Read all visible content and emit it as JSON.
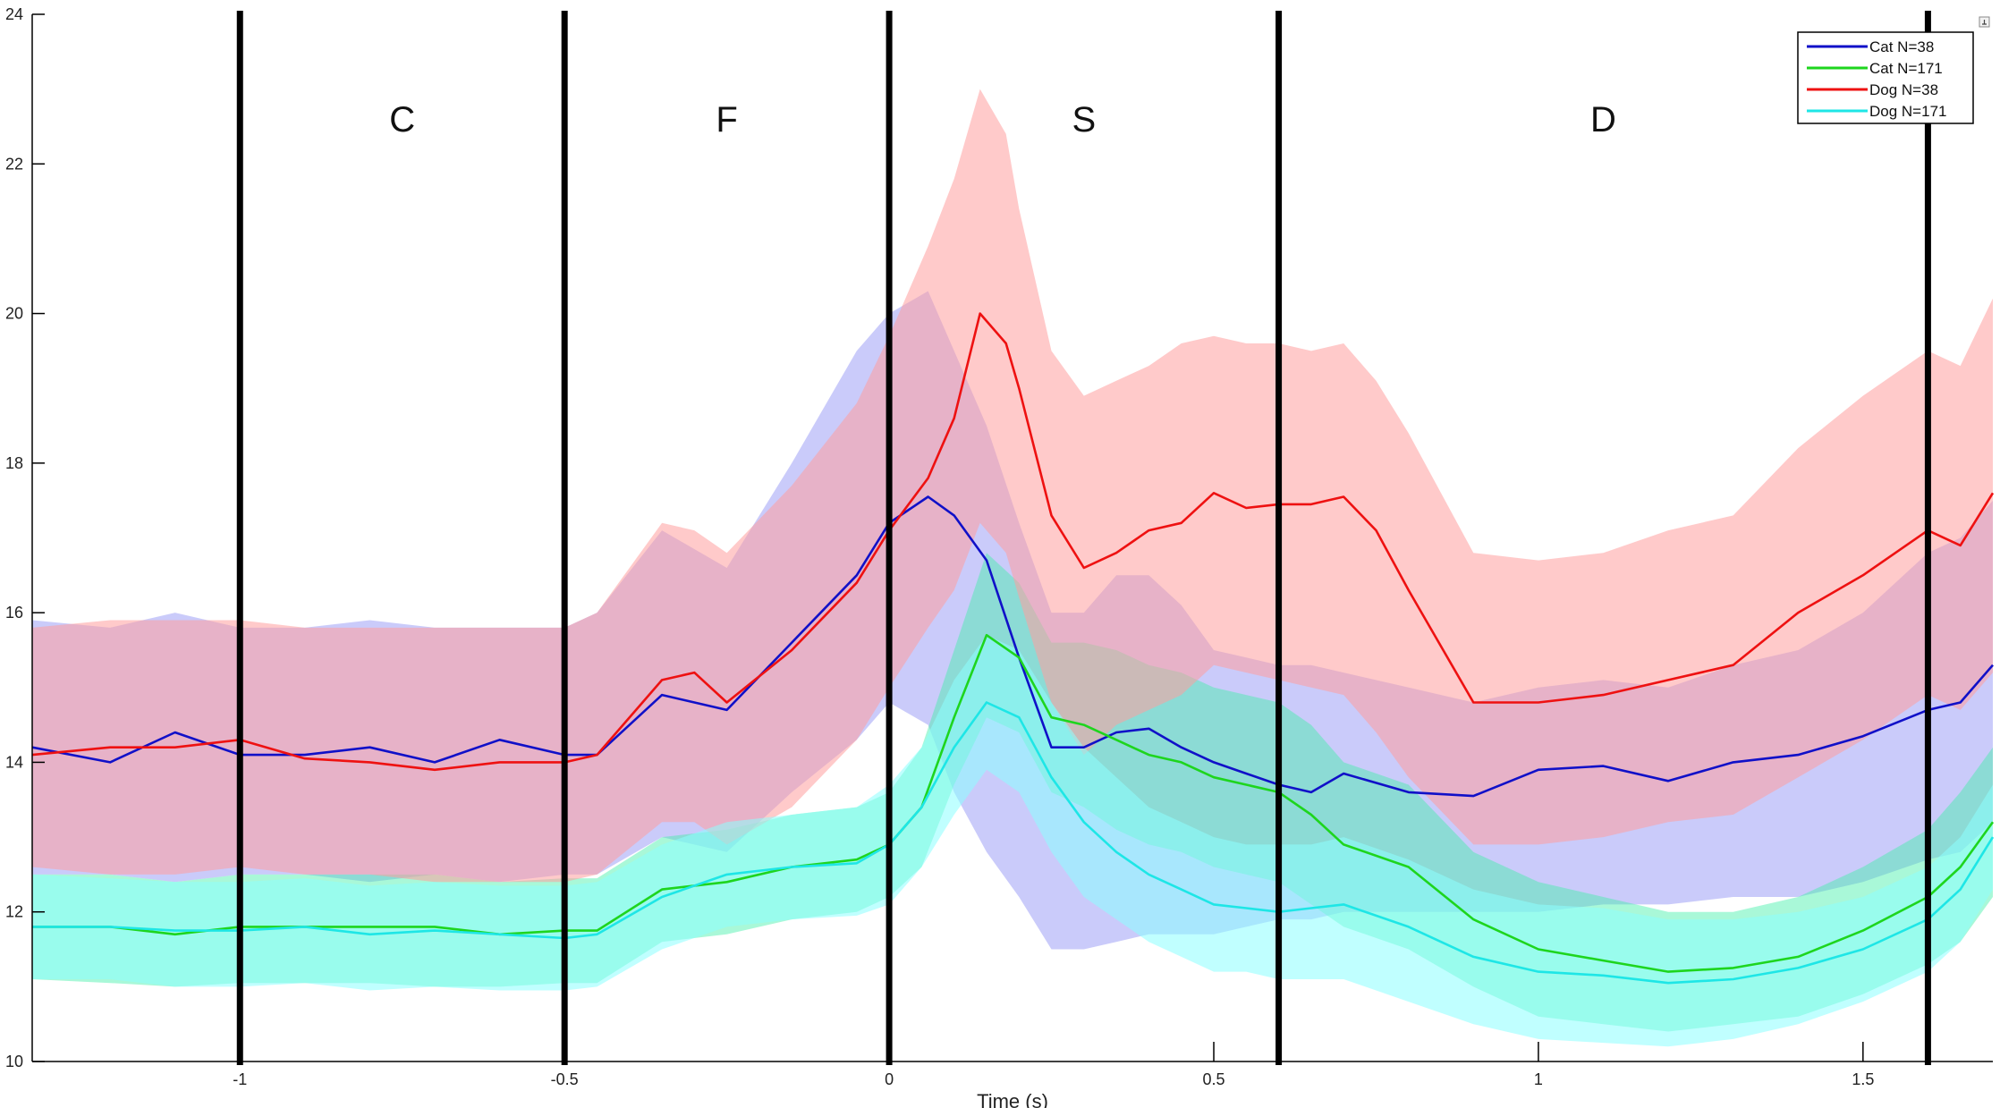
{
  "chart_data": {
    "type": "line",
    "title": "",
    "xlabel": "Time (s)",
    "ylabel": "",
    "xlim": [
      -1.32,
      1.7
    ],
    "ylim": [
      10,
      24
    ],
    "xticks": [
      -1,
      -0.5,
      0,
      0.5,
      1,
      1.5
    ],
    "xtick_labels": [
      "-1",
      "-0.5",
      "0",
      "0.5",
      "1",
      "1.5"
    ],
    "yticks": [
      10,
      12,
      14,
      16,
      18,
      20,
      22,
      24
    ],
    "ytick_labels": [
      "10",
      "12",
      "14",
      "16",
      "18",
      "20",
      "22",
      "24"
    ],
    "grid": false,
    "legend_position": "top-right",
    "vertical_lines": [
      -1,
      -0.5,
      0,
      0.6,
      1.6
    ],
    "phase_labels": [
      {
        "text": "C",
        "x": -0.75,
        "y": 22.6
      },
      {
        "text": "F",
        "x": -0.25,
        "y": 22.6
      },
      {
        "text": "S",
        "x": 0.3,
        "y": 22.6
      },
      {
        "text": "D",
        "x": 1.1,
        "y": 22.6
      }
    ],
    "series": [
      {
        "name": "Cat N=38",
        "color": "#1010c8",
        "band_color": "#8a8cf5",
        "band_opacity": 0.45,
        "x": [
          -1.32,
          -1.2,
          -1.1,
          -1.0,
          -0.9,
          -0.8,
          -0.7,
          -0.6,
          -0.5,
          -0.45,
          -0.35,
          -0.25,
          -0.15,
          -0.05,
          0.0,
          0.06,
          0.1,
          0.15,
          0.2,
          0.25,
          0.3,
          0.35,
          0.4,
          0.45,
          0.5,
          0.55,
          0.6,
          0.65,
          0.7,
          0.8,
          0.9,
          1.0,
          1.1,
          1.2,
          1.3,
          1.4,
          1.5,
          1.6,
          1.65,
          1.7
        ],
        "values": [
          14.2,
          14.0,
          14.4,
          14.1,
          14.1,
          14.2,
          14.0,
          14.3,
          14.1,
          14.1,
          14.9,
          14.7,
          15.6,
          16.5,
          17.2,
          17.55,
          17.3,
          16.7,
          15.4,
          14.2,
          14.2,
          14.4,
          14.45,
          14.2,
          14.0,
          13.85,
          13.7,
          13.6,
          13.85,
          13.6,
          13.55,
          13.9,
          13.95,
          13.75,
          14.0,
          14.1,
          14.35,
          14.7,
          14.8,
          15.3
        ],
        "lower": [
          12.5,
          12.5,
          12.4,
          12.5,
          12.5,
          12.4,
          12.5,
          12.4,
          12.5,
          12.5,
          13.0,
          12.8,
          13.6,
          14.3,
          14.8,
          14.5,
          13.6,
          12.8,
          12.2,
          11.5,
          11.5,
          11.6,
          11.7,
          11.7,
          11.7,
          11.8,
          11.9,
          11.9,
          12.0,
          12.0,
          12.0,
          12.0,
          12.1,
          12.1,
          12.2,
          12.2,
          12.4,
          12.7,
          12.8,
          13.2
        ],
        "upper": [
          15.9,
          15.8,
          16.0,
          15.8,
          15.8,
          15.9,
          15.8,
          15.8,
          15.8,
          16.0,
          17.1,
          16.6,
          18.0,
          19.5,
          20.0,
          20.3,
          19.5,
          18.5,
          17.2,
          16.0,
          16.0,
          16.5,
          16.5,
          16.1,
          15.5,
          15.4,
          15.3,
          15.3,
          15.2,
          15.0,
          14.8,
          15.0,
          15.1,
          15.0,
          15.3,
          15.5,
          16.0,
          16.8,
          17.0,
          17.5
        ]
      },
      {
        "name": "Cat N=171",
        "color": "#1ed51e",
        "band_color": "#40f0a8",
        "band_opacity": 0.45,
        "x": [
          -1.32,
          -1.2,
          -1.1,
          -1.0,
          -0.9,
          -0.8,
          -0.7,
          -0.6,
          -0.5,
          -0.45,
          -0.35,
          -0.25,
          -0.15,
          -0.05,
          0.0,
          0.05,
          0.1,
          0.15,
          0.2,
          0.25,
          0.3,
          0.35,
          0.4,
          0.45,
          0.5,
          0.55,
          0.6,
          0.65,
          0.7,
          0.8,
          0.9,
          1.0,
          1.1,
          1.2,
          1.3,
          1.4,
          1.5,
          1.6,
          1.65,
          1.7
        ],
        "values": [
          11.8,
          11.8,
          11.7,
          11.8,
          11.8,
          11.8,
          11.8,
          11.7,
          11.75,
          11.75,
          12.3,
          12.4,
          12.6,
          12.7,
          12.9,
          13.4,
          14.6,
          15.7,
          15.4,
          14.6,
          14.5,
          14.3,
          14.1,
          14.0,
          13.8,
          13.7,
          13.6,
          13.3,
          12.9,
          12.6,
          11.9,
          11.5,
          11.35,
          11.2,
          11.25,
          11.4,
          11.75,
          12.2,
          12.6,
          13.2
        ],
        "lower": [
          11.1,
          11.05,
          11.0,
          11.05,
          11.05,
          11.05,
          11.0,
          11.0,
          11.05,
          11.05,
          11.6,
          11.7,
          11.9,
          12.0,
          12.2,
          12.6,
          13.7,
          14.6,
          14.4,
          13.6,
          13.4,
          13.1,
          12.9,
          12.8,
          12.6,
          12.5,
          12.4,
          12.1,
          11.8,
          11.5,
          11.0,
          10.6,
          10.5,
          10.4,
          10.5,
          10.6,
          10.9,
          11.3,
          11.6,
          12.2
        ],
        "upper": [
          12.5,
          12.5,
          12.4,
          12.5,
          12.5,
          12.5,
          12.5,
          12.4,
          12.45,
          12.45,
          13.0,
          13.1,
          13.3,
          13.4,
          13.6,
          14.2,
          15.5,
          16.8,
          16.4,
          15.6,
          15.6,
          15.5,
          15.3,
          15.2,
          15.0,
          14.9,
          14.8,
          14.5,
          14.0,
          13.7,
          12.8,
          12.4,
          12.2,
          12.0,
          12.0,
          12.2,
          12.6,
          13.1,
          13.6,
          14.2
        ]
      },
      {
        "name": "Dog N=38",
        "color": "#ee1111",
        "band_color": "#ff9f9f",
        "band_opacity": 0.55,
        "x": [
          -1.32,
          -1.2,
          -1.1,
          -1.0,
          -0.9,
          -0.8,
          -0.7,
          -0.6,
          -0.5,
          -0.45,
          -0.35,
          -0.3,
          -0.25,
          -0.15,
          -0.05,
          0.0,
          0.06,
          0.1,
          0.14,
          0.18,
          0.2,
          0.25,
          0.3,
          0.35,
          0.4,
          0.45,
          0.5,
          0.55,
          0.6,
          0.65,
          0.7,
          0.75,
          0.8,
          0.9,
          1.0,
          1.1,
          1.2,
          1.3,
          1.4,
          1.5,
          1.6,
          1.65,
          1.7
        ],
        "values": [
          14.1,
          14.2,
          14.2,
          14.3,
          14.05,
          14.0,
          13.9,
          14.0,
          14.0,
          14.1,
          15.1,
          15.2,
          14.8,
          15.5,
          16.4,
          17.1,
          17.8,
          18.6,
          20.0,
          19.6,
          19.0,
          17.3,
          16.6,
          16.8,
          17.1,
          17.2,
          17.6,
          17.4,
          17.45,
          17.45,
          17.55,
          17.1,
          16.3,
          14.8,
          14.8,
          14.9,
          15.1,
          15.3,
          16.0,
          16.5,
          17.1,
          16.9,
          17.6
        ],
        "lower": [
          12.6,
          12.5,
          12.5,
          12.6,
          12.5,
          12.5,
          12.4,
          12.4,
          12.4,
          12.5,
          13.2,
          13.2,
          12.9,
          13.4,
          14.3,
          15.0,
          15.8,
          16.3,
          17.2,
          16.8,
          16.2,
          14.8,
          14.1,
          14.5,
          14.7,
          14.9,
          15.3,
          15.2,
          15.1,
          15.0,
          14.9,
          14.4,
          13.8,
          12.9,
          12.9,
          13.0,
          13.2,
          13.3,
          13.8,
          14.3,
          14.9,
          14.7,
          15.2
        ],
        "upper": [
          15.8,
          15.9,
          15.9,
          15.9,
          15.8,
          15.8,
          15.8,
          15.8,
          15.8,
          16.0,
          17.2,
          17.1,
          16.8,
          17.7,
          18.8,
          19.7,
          20.9,
          21.8,
          23.0,
          22.4,
          21.4,
          19.5,
          18.9,
          19.1,
          19.3,
          19.6,
          19.7,
          19.6,
          19.6,
          19.5,
          19.6,
          19.1,
          18.4,
          16.8,
          16.7,
          16.8,
          17.1,
          17.3,
          18.2,
          18.9,
          19.5,
          19.3,
          20.2
        ]
      },
      {
        "name": "Dog N=171",
        "color": "#1ee6e6",
        "band_color": "#8cffff",
        "band_opacity": 0.55,
        "x": [
          -1.32,
          -1.2,
          -1.1,
          -1.0,
          -0.9,
          -0.8,
          -0.7,
          -0.6,
          -0.5,
          -0.45,
          -0.35,
          -0.25,
          -0.15,
          -0.05,
          0.0,
          0.05,
          0.1,
          0.15,
          0.2,
          0.25,
          0.3,
          0.35,
          0.4,
          0.45,
          0.5,
          0.55,
          0.6,
          0.65,
          0.7,
          0.8,
          0.9,
          1.0,
          1.1,
          1.2,
          1.3,
          1.4,
          1.5,
          1.6,
          1.65,
          1.7
        ],
        "values": [
          11.8,
          11.8,
          11.75,
          11.75,
          11.8,
          11.7,
          11.75,
          11.7,
          11.65,
          11.7,
          12.2,
          12.5,
          12.6,
          12.65,
          12.9,
          13.4,
          14.2,
          14.8,
          14.6,
          13.8,
          13.2,
          12.8,
          12.5,
          12.3,
          12.1,
          12.05,
          12.0,
          12.05,
          12.1,
          11.8,
          11.4,
          11.2,
          11.15,
          11.05,
          11.1,
          11.25,
          11.5,
          11.9,
          12.3,
          13.0
        ],
        "lower": [
          11.1,
          11.1,
          11.0,
          11.0,
          11.05,
          10.95,
          11.0,
          10.95,
          10.95,
          11.0,
          11.5,
          11.8,
          11.9,
          11.95,
          12.1,
          12.6,
          13.3,
          13.9,
          13.6,
          12.8,
          12.2,
          11.9,
          11.6,
          11.4,
          11.2,
          11.2,
          11.1,
          11.1,
          11.1,
          10.8,
          10.5,
          10.3,
          10.25,
          10.2,
          10.3,
          10.5,
          10.8,
          11.2,
          11.6,
          12.3
        ],
        "upper": [
          12.5,
          12.45,
          12.4,
          12.4,
          12.45,
          12.35,
          12.4,
          12.35,
          12.35,
          12.4,
          12.9,
          13.2,
          13.3,
          13.4,
          13.7,
          14.2,
          15.1,
          15.7,
          15.5,
          14.8,
          14.2,
          13.8,
          13.4,
          13.2,
          13.0,
          12.9,
          12.9,
          12.9,
          13.0,
          12.7,
          12.3,
          12.1,
          12.05,
          11.9,
          11.9,
          12.0,
          12.2,
          12.6,
          13.0,
          13.7
        ]
      }
    ]
  }
}
